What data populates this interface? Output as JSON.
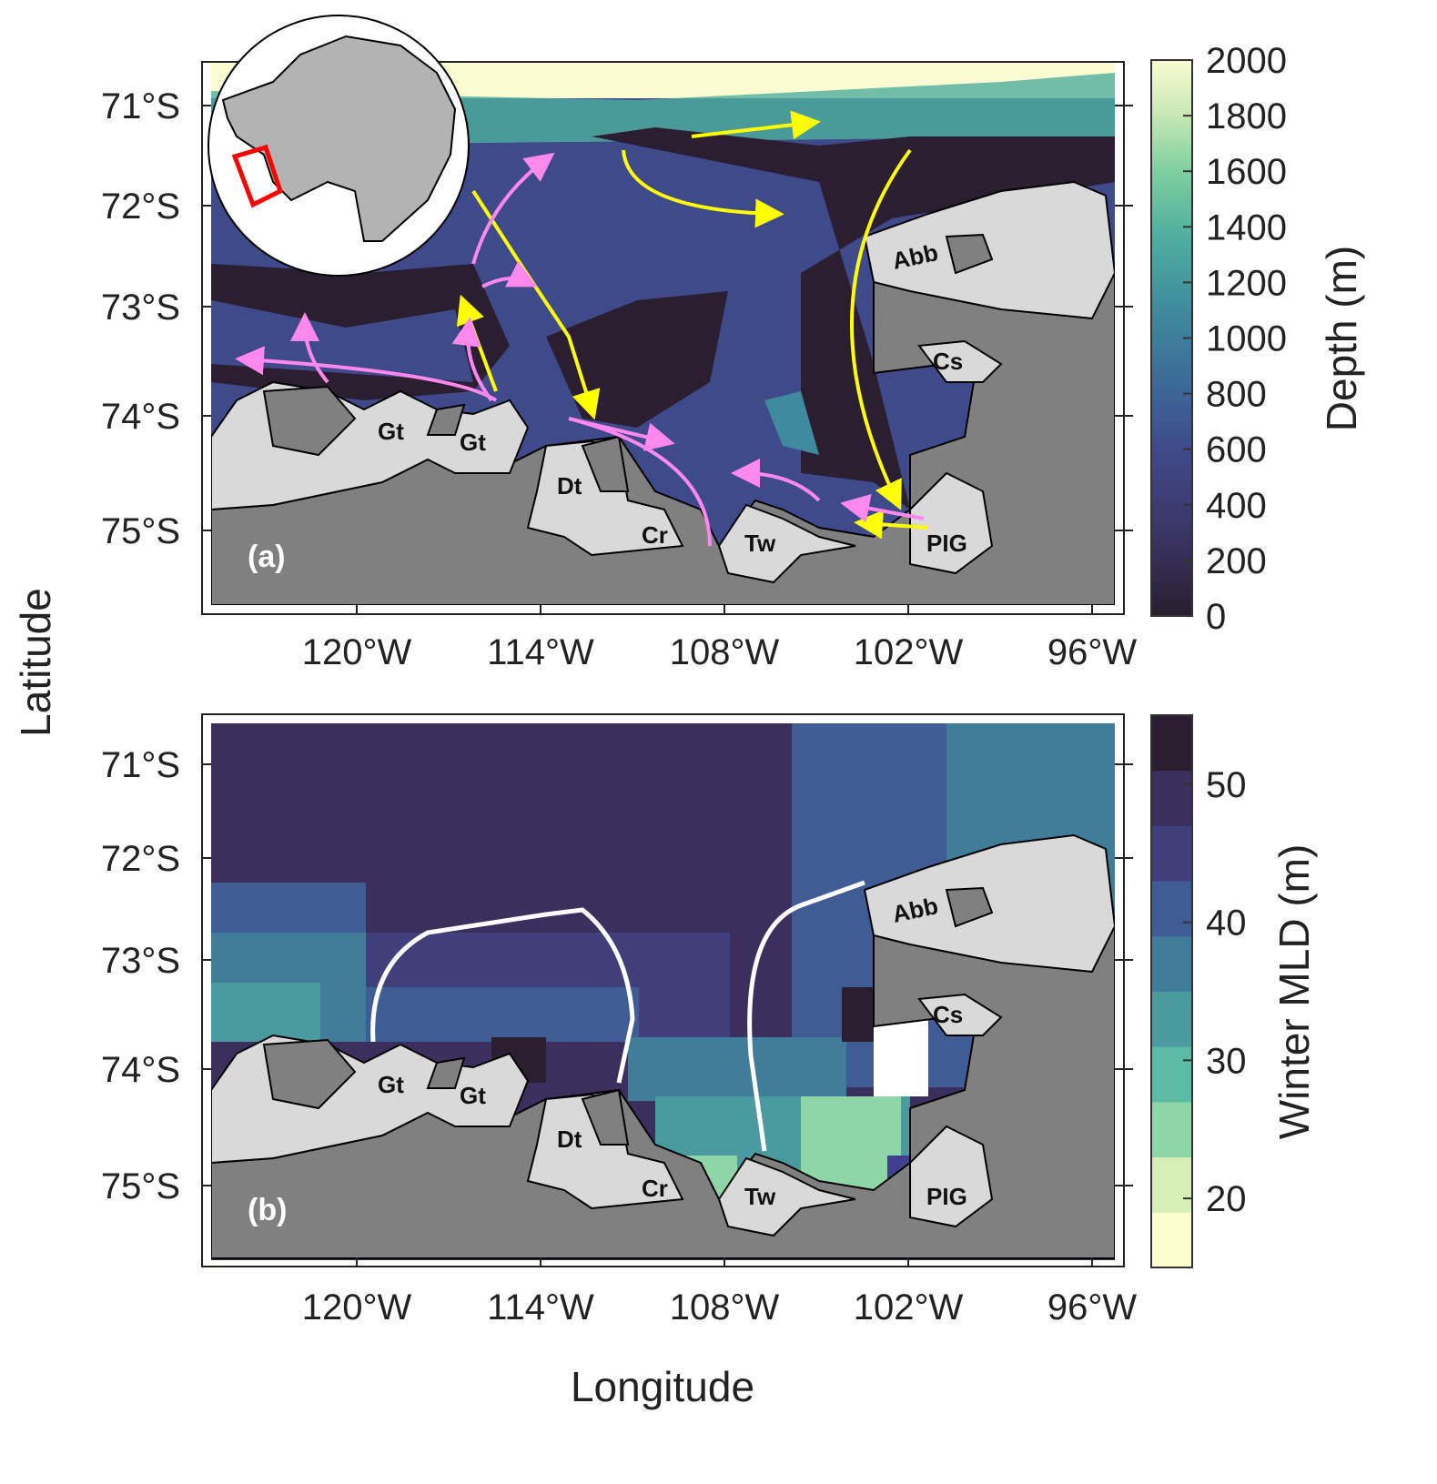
{
  "figure": {
    "x_axis_label": "Longitude",
    "y_axis_label": "Latitude",
    "lon_ticks": [
      "120°W",
      "114°W",
      "108°W",
      "102°W",
      "96°W"
    ],
    "lat_ticks": [
      "71°S",
      "72°S",
      "73°S",
      "74°S",
      "75°S"
    ]
  },
  "panel_a": {
    "label": "(a)",
    "colorbar_label": "Depth (m)",
    "colorbar_ticks": [
      "2000",
      "1800",
      "1600",
      "1400",
      "1200",
      "1000",
      "800",
      "600",
      "400",
      "200",
      "0"
    ],
    "colorbar_range": [
      0,
      2000
    ],
    "colormap": [
      "#2a1e30",
      "#3b3566",
      "#3f4a8a",
      "#3c6a98",
      "#3f8a9e",
      "#4fae9e",
      "#7fcfa0",
      "#c6e8b4",
      "#fbfbd2"
    ],
    "place_labels": [
      "Gt",
      "Gt",
      "Dt",
      "Cr",
      "Tw",
      "PIG",
      "Abb",
      "Cs"
    ],
    "arrow_colors": {
      "yellow": "#ffff00",
      "pink": "#ff88ee"
    },
    "inset_box_color": "#ff0000"
  },
  "panel_b": {
    "label": "(b)",
    "colorbar_label": "Winter MLD (m)",
    "colorbar_ticks": [
      "50",
      "40",
      "30",
      "20"
    ],
    "colorbar_range": [
      15,
      55
    ],
    "colormap": [
      "#fdfdcf",
      "#d6efb6",
      "#8fd6a6",
      "#5bbba4",
      "#4a9aa0",
      "#3f7d9a",
      "#3f5d94",
      "#403f7c",
      "#3b2f5e",
      "#2a1e30"
    ],
    "place_labels": [
      "Gt",
      "Gt",
      "Dt",
      "Cr",
      "Tw",
      "PIG",
      "Abb",
      "Cs"
    ],
    "contour_color": "#ffffff"
  }
}
